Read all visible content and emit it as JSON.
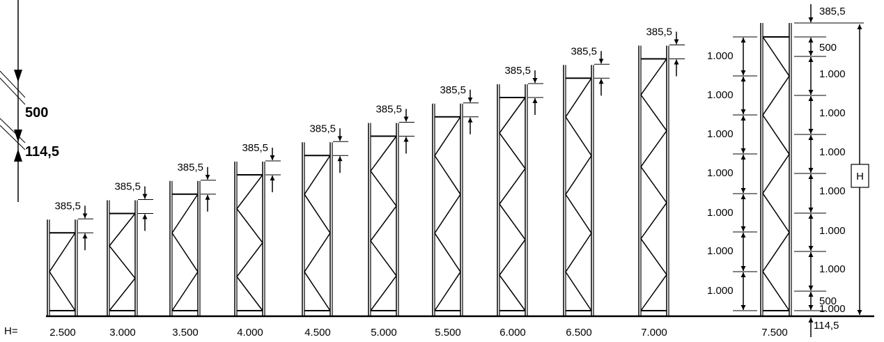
{
  "ground_label": "H=",
  "frame_heights": [
    "2.500",
    "3.000",
    "3.500",
    "4.000",
    "4.500",
    "5.000",
    "5.500",
    "6.000",
    "6.500",
    "7.000",
    "7.500"
  ],
  "top_dimension": "385,5",
  "left_scale": {
    "upper_dimension": "500",
    "lower_dimension": "114,5"
  },
  "detail_frame": {
    "left_dimensions": [
      "1.000",
      "1.000",
      "1.000",
      "1.000",
      "1.000",
      "1.000",
      "1.000"
    ],
    "right_dimensions": [
      "385,5",
      "500",
      "1.000",
      "1.000",
      "1.000",
      "1.000",
      "1.000",
      "1.000",
      "1.000",
      "500",
      "114,5"
    ],
    "height_marker": "H"
  }
}
